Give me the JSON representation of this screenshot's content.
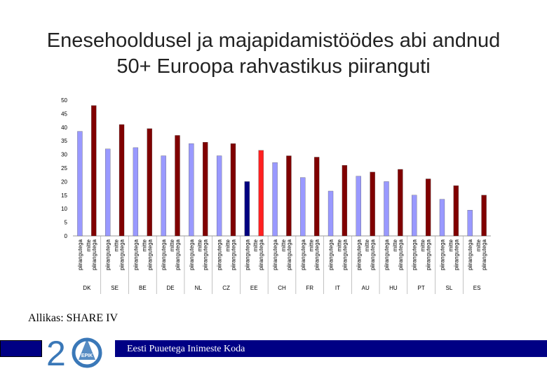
{
  "title": "Enesehooldusel ja majapidamistöödes abi andnud 50+ Euroopa rahvastikus piiranguti",
  "source": "Allikas: SHARE IV",
  "footer": {
    "org_name": "Eesti Puuetega Inimeste Koda",
    "logo_text": "EPIK",
    "logo_number": "20"
  },
  "colors": {
    "light": "#9999ff",
    "dark": "#800000",
    "ee_light": "#000080",
    "ee_dark": "#ff2020",
    "footer": "#000084",
    "logo_blue": "#3a78b8"
  },
  "chart_data": {
    "type": "bar",
    "ylim": [
      0,
      50
    ],
    "yticks": [
      0,
      5,
      10,
      15,
      20,
      25,
      30,
      35,
      40,
      45,
      50
    ],
    "group_labels": [
      "piirangutega",
      "mitte piirangutega"
    ],
    "countries": [
      {
        "name": "DK",
        "values": [
          38.5,
          48.0
        ]
      },
      {
        "name": "SE",
        "values": [
          32.0,
          41.0
        ]
      },
      {
        "name": "BE",
        "values": [
          32.5,
          39.5
        ]
      },
      {
        "name": "DE",
        "values": [
          29.5,
          37.0
        ]
      },
      {
        "name": "NL",
        "values": [
          34.0,
          34.5
        ]
      },
      {
        "name": "CZ",
        "values": [
          29.5,
          34.0
        ]
      },
      {
        "name": "EE",
        "values": [
          20.0,
          31.5
        ]
      },
      {
        "name": "CH",
        "values": [
          27.0,
          29.5
        ]
      },
      {
        "name": "FR",
        "values": [
          21.5,
          29.0
        ]
      },
      {
        "name": "IT",
        "values": [
          16.5,
          26.0
        ]
      },
      {
        "name": "AU",
        "values": [
          22.0,
          23.5
        ]
      },
      {
        "name": "HU",
        "values": [
          20.0,
          24.5
        ]
      },
      {
        "name": "PT",
        "values": [
          15.0,
          21.0
        ]
      },
      {
        "name": "SL",
        "values": [
          13.5,
          18.5
        ]
      },
      {
        "name": "ES",
        "values": [
          9.5,
          15.0
        ]
      }
    ]
  }
}
